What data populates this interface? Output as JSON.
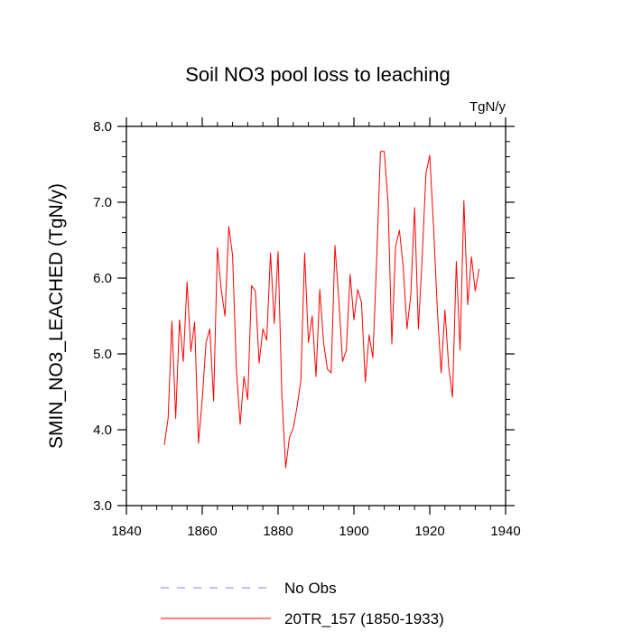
{
  "chart_data": {
    "type": "line",
    "title": "Soil NO3 pool loss to leaching",
    "units": "TgN/y",
    "xlabel": "",
    "ylabel": "SMIN_NO3_LEACHED  (TgN/y)",
    "xlim": [
      1840,
      1940
    ],
    "ylim": [
      3.0,
      8.0
    ],
    "xticks": [
      1840,
      1860,
      1880,
      1900,
      1920,
      1940
    ],
    "xtick_labels": [
      "1840",
      "1860",
      "1880",
      "1900",
      "1920",
      "1940"
    ],
    "yticks": [
      3.0,
      4.0,
      5.0,
      6.0,
      7.0,
      8.0
    ],
    "ytick_labels": [
      "3.0",
      "4.0",
      "5.0",
      "6.0",
      "7.0",
      "8.0"
    ],
    "grid": false,
    "legend_position": "bottom",
    "series": [
      {
        "name": "No Obs",
        "color": "#8080ff",
        "dashed": true,
        "x": [],
        "values": []
      },
      {
        "name": "20TR_157 (1850-1933)",
        "color": "#ff0000",
        "dashed": false,
        "x": [
          1850,
          1851,
          1852,
          1853,
          1854,
          1855,
          1856,
          1857,
          1858,
          1859,
          1860,
          1861,
          1862,
          1863,
          1864,
          1865,
          1866,
          1867,
          1868,
          1869,
          1870,
          1871,
          1872,
          1873,
          1874,
          1875,
          1876,
          1877,
          1878,
          1879,
          1880,
          1881,
          1882,
          1883,
          1884,
          1885,
          1886,
          1887,
          1888,
          1889,
          1890,
          1891,
          1892,
          1893,
          1894,
          1895,
          1896,
          1897,
          1898,
          1899,
          1900,
          1901,
          1902,
          1903,
          1904,
          1905,
          1906,
          1907,
          1908,
          1909,
          1910,
          1911,
          1912,
          1913,
          1914,
          1915,
          1916,
          1917,
          1918,
          1919,
          1920,
          1921,
          1922,
          1923,
          1924,
          1925,
          1926,
          1927,
          1928,
          1929,
          1930,
          1931,
          1932,
          1933
        ],
        "values": [
          3.8,
          4.15,
          5.43,
          4.15,
          5.45,
          4.9,
          5.95,
          5.03,
          5.42,
          3.82,
          4.4,
          5.15,
          5.33,
          4.38,
          6.4,
          5.85,
          5.5,
          6.68,
          6.3,
          4.8,
          4.07,
          4.7,
          4.4,
          5.9,
          5.83,
          4.88,
          5.33,
          5.18,
          6.33,
          5.4,
          6.35,
          4.45,
          3.5,
          3.9,
          4.02,
          4.3,
          4.65,
          6.33,
          5.15,
          5.5,
          4.7,
          5.85,
          5.15,
          4.8,
          4.75,
          6.43,
          5.73,
          4.9,
          5.05,
          6.05,
          5.45,
          5.85,
          5.68,
          4.63,
          5.25,
          4.95,
          6.25,
          7.67,
          7.67,
          7.0,
          5.13,
          6.42,
          6.63,
          6.15,
          5.33,
          5.78,
          6.93,
          5.33,
          6.28,
          7.38,
          7.62,
          6.68,
          5.58,
          4.75,
          5.58,
          4.83,
          4.43,
          6.22,
          5.05,
          7.02,
          5.65,
          6.28,
          5.83,
          6.12
        ]
      }
    ]
  }
}
